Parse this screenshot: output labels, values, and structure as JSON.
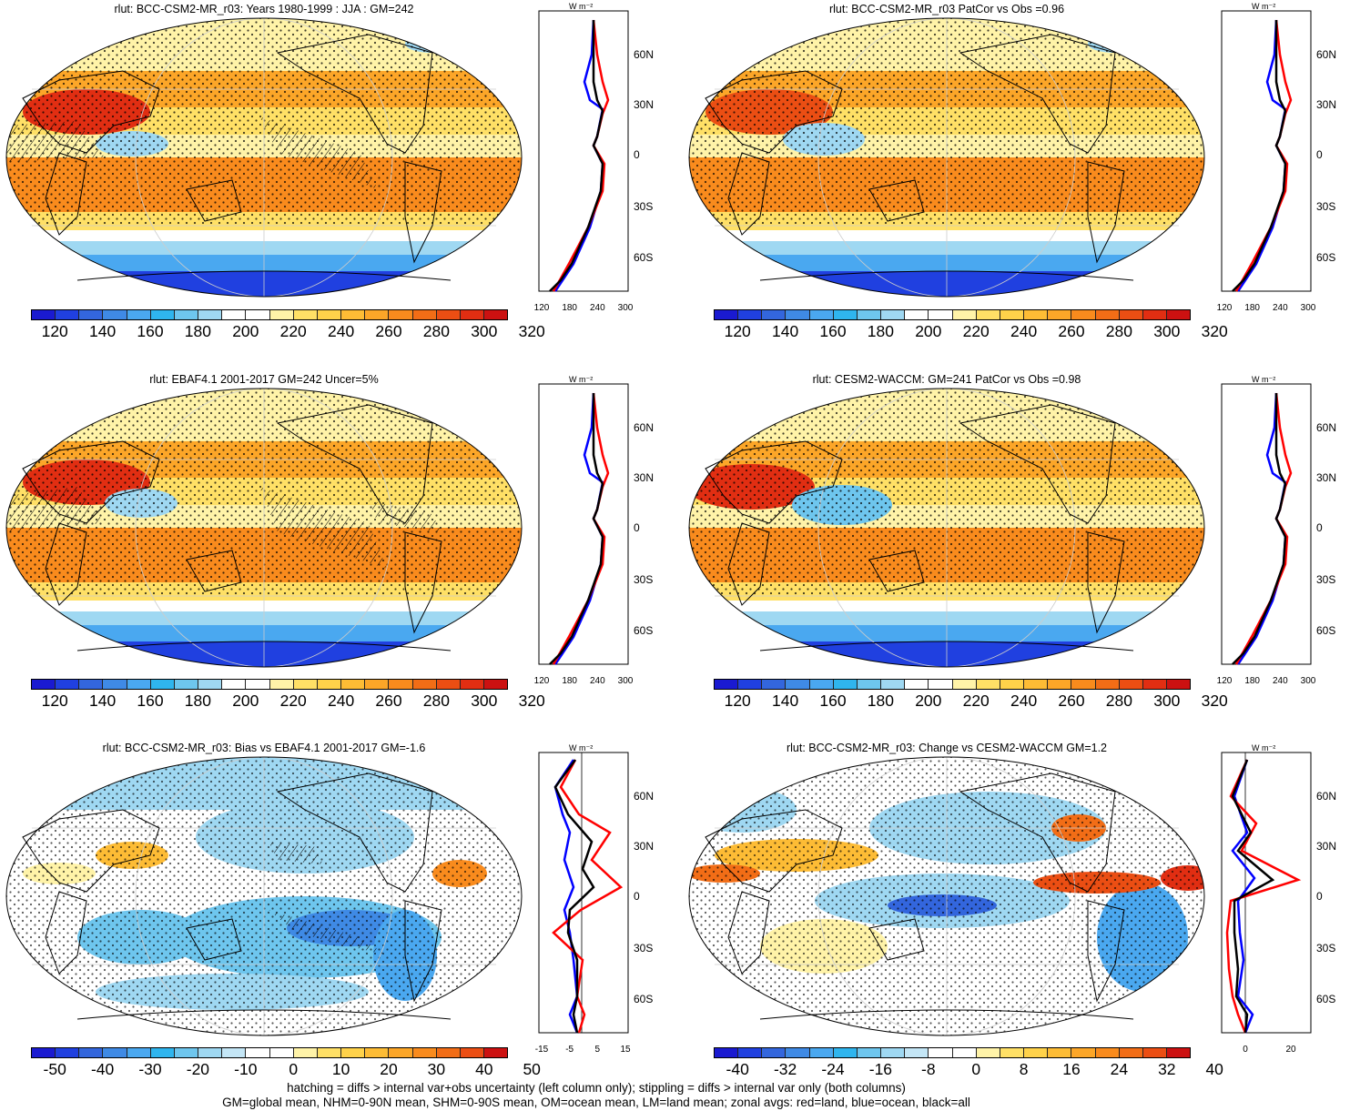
{
  "figure": {
    "footer": [
      "hatching = diffs > internal var+obs uncertainty (left column only); stippling = diffs > internal var only (both columns)",
      "GM=global mean, NHM=0-90N mean, SHM=0-90S mean, OM=ocean mean, LM=land mean; zonal avgs: red=land, blue=ocean, black=all"
    ],
    "zonal_units": "W m⁻²",
    "lat_labels": [
      "60N",
      "30N",
      "0",
      "30S",
      "60S"
    ]
  },
  "panels": [
    {
      "id": "p1",
      "title": "rlut: BCC-CSM2-MR_r03: Years 1980-1999 : JJA : GM=242",
      "type": "abs",
      "colorbar_labels": [
        "120",
        "140",
        "160",
        "180",
        "200",
        "220",
        "240",
        "260",
        "280",
        "300",
        "320"
      ],
      "zonal_ticks": [
        "120",
        "180",
        "240",
        "300"
      ]
    },
    {
      "id": "p2",
      "title": "rlut: BCC-CSM2-MR_r03 PatCor vs Obs =0.96",
      "type": "abs",
      "colorbar_labels": [
        "120",
        "140",
        "160",
        "180",
        "200",
        "220",
        "240",
        "260",
        "280",
        "300",
        "320"
      ],
      "zonal_ticks": [
        "120",
        "180",
        "240",
        "300"
      ]
    },
    {
      "id": "p3",
      "title": "rlut: EBAF4.1 2001-2017 GM=242 Uncer=5%",
      "type": "abs",
      "colorbar_labels": [
        "120",
        "140",
        "160",
        "180",
        "200",
        "220",
        "240",
        "260",
        "280",
        "300",
        "320"
      ],
      "zonal_ticks": [
        "120",
        "180",
        "240",
        "300"
      ]
    },
    {
      "id": "p4",
      "title": "rlut: CESM2-WACCM: GM=241 PatCor vs Obs =0.98",
      "type": "abs",
      "colorbar_labels": [
        "120",
        "140",
        "160",
        "180",
        "200",
        "220",
        "240",
        "260",
        "280",
        "300",
        "320"
      ],
      "zonal_ticks": [
        "120",
        "180",
        "240",
        "300"
      ]
    },
    {
      "id": "p5",
      "title": "rlut: BCC-CSM2-MR_r03: Bias vs EBAF4.1 2001-2017 GM=-1.6",
      "type": "diff",
      "colorbar_labels": [
        "-50",
        "-40",
        "-30",
        "-20",
        "-10",
        "0",
        "10",
        "20",
        "30",
        "40",
        "50"
      ],
      "zonal_ticks": [
        "-15",
        "-5",
        "5",
        "15"
      ]
    },
    {
      "id": "p6",
      "title": "rlut: BCC-CSM2-MR_r03: Change vs CESM2-WACCM GM=1.2",
      "type": "diff",
      "colorbar_labels": [
        "-40",
        "-32",
        "-24",
        "-16",
        "-8",
        "0",
        "8",
        "16",
        "24",
        "32",
        "40"
      ],
      "zonal_ticks": [
        "0",
        "20"
      ]
    }
  ],
  "palettes": {
    "abs": [
      "#1a1ad1",
      "#2040e0",
      "#3366dd",
      "#3f8ae5",
      "#4aa8f0",
      "#2fb5ee",
      "#6ec6ee",
      "#9fd8f2",
      "#ffffff",
      "#ffffff",
      "#fff3a8",
      "#ffe066",
      "#ffd24a",
      "#fdbc35",
      "#fca628",
      "#f98b1d",
      "#f26d16",
      "#eb4e13",
      "#e12e12",
      "#cc1111"
    ],
    "diff": [
      "#1a1ad1",
      "#2040e0",
      "#3366dd",
      "#3f8ae5",
      "#4aa8f0",
      "#2fb5ee",
      "#6ec6ee",
      "#9fd8f2",
      "#c4e6f6",
      "#ffffff",
      "#ffffff",
      "#fff3a8",
      "#ffe066",
      "#ffd24a",
      "#fdbc35",
      "#fca628",
      "#f98b1d",
      "#f26d16",
      "#eb4e13",
      "#cc1111"
    ]
  }
}
